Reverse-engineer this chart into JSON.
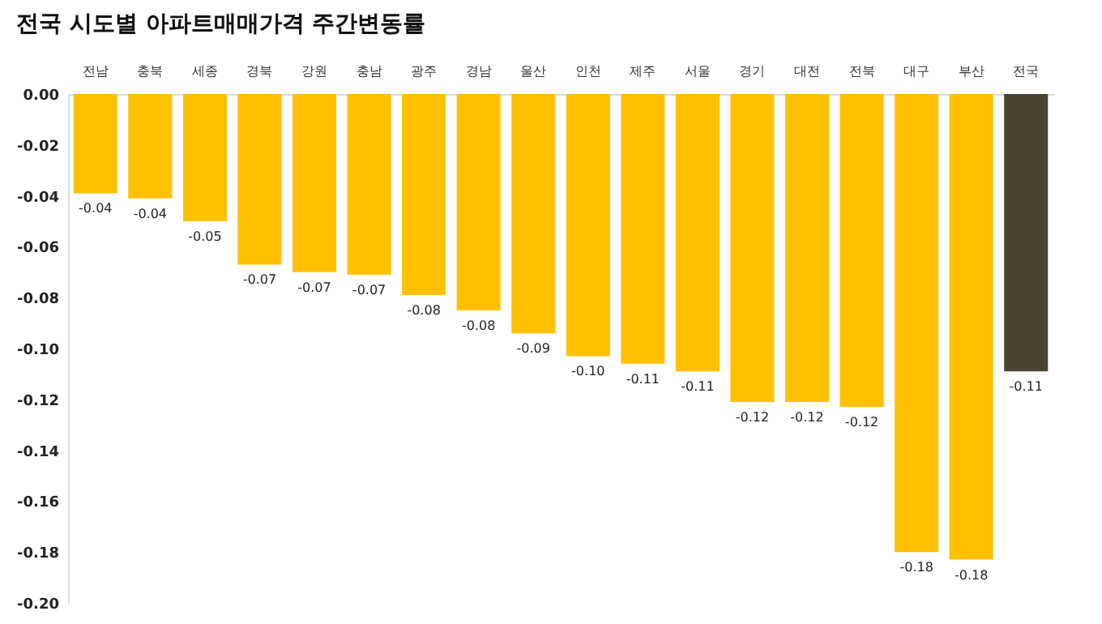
{
  "chart_data": {
    "type": "bar",
    "title": "전국 시도별 아파트매매가격 주간변동률",
    "categories": [
      "전남",
      "충북",
      "세종",
      "경북",
      "강원",
      "충남",
      "광주",
      "경남",
      "울산",
      "인천",
      "제주",
      "서울",
      "경기",
      "대전",
      "전북",
      "대구",
      "부산",
      "전국"
    ],
    "values": [
      -0.039,
      -0.041,
      -0.05,
      -0.067,
      -0.07,
      -0.071,
      -0.079,
      -0.085,
      -0.094,
      -0.103,
      -0.106,
      -0.109,
      -0.121,
      -0.121,
      -0.123,
      -0.18,
      -0.183,
      -0.109
    ],
    "value_labels": [
      "-0.04",
      "-0.04",
      "-0.05",
      "-0.07",
      "-0.07",
      "-0.07",
      "-0.08",
      "-0.08",
      "-0.09",
      "-0.10",
      "-0.11",
      "-0.11",
      "-0.12",
      "-0.12",
      "-0.12",
      "-0.18",
      "-0.18",
      "-0.11"
    ],
    "colors": [
      "#ffc000",
      "#ffc000",
      "#ffc000",
      "#ffc000",
      "#ffc000",
      "#ffc000",
      "#ffc000",
      "#ffc000",
      "#ffc000",
      "#ffc000",
      "#ffc000",
      "#ffc000",
      "#ffc000",
      "#ffc000",
      "#ffc000",
      "#ffc000",
      "#ffc000",
      "#4a4230"
    ],
    "ylim": [
      -0.2,
      0
    ],
    "yticks": [
      {
        "value": 0,
        "label": "0.00"
      },
      {
        "value": -0.02,
        "label": "-0.02"
      },
      {
        "value": -0.04,
        "label": "-0.04"
      },
      {
        "value": -0.06,
        "label": "-0.06"
      },
      {
        "value": -0.08,
        "label": "-0.08"
      },
      {
        "value": -0.1,
        "label": "-0.10"
      },
      {
        "value": -0.12,
        "label": "-0.12"
      },
      {
        "value": -0.14,
        "label": "-0.14"
      },
      {
        "value": -0.16,
        "label": "-0.16"
      },
      {
        "value": -0.18,
        "label": "-0.18"
      },
      {
        "value": -0.2,
        "label": "-0.20"
      }
    ],
    "grid": false
  }
}
